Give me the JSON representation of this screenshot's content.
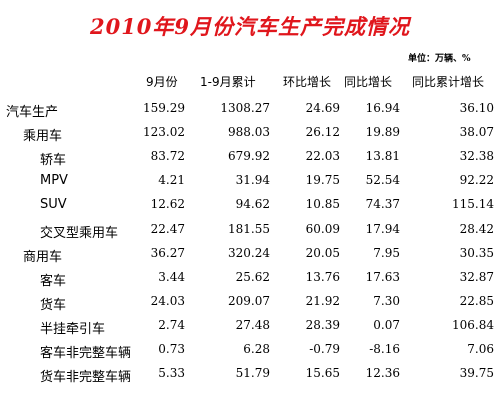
{
  "title": "2010年9月份汽车生产完成情况",
  "unit": "单位：万辆、%",
  "columns": [
    "9月份",
    "1-9月累计",
    "环比增长",
    "同比增长",
    "同比累计增长"
  ],
  "rows": [
    {
      "label": "汽车生产",
      "level": 0,
      "values": [
        "159.29",
        "1308.27",
        "24.69",
        "16.94",
        "36.10"
      ]
    },
    {
      "label": "乘用车",
      "level": 1,
      "values": [
        "123.02",
        "988.03",
        "26.12",
        "19.89",
        "38.07"
      ]
    },
    {
      "label": "轿车",
      "level": 2,
      "values": [
        "83.72",
        "679.92",
        "22.03",
        "13.81",
        "32.38"
      ]
    },
    {
      "label": "MPV",
      "level": 2,
      "values": [
        "4.21",
        "31.94",
        "19.75",
        "52.54",
        "92.22"
      ]
    },
    {
      "label": "SUV",
      "level": 2,
      "values": [
        "12.62",
        "94.62",
        "10.85",
        "74.37",
        "115.14"
      ]
    },
    {
      "label": "交叉型乘用车",
      "level": 2,
      "values": [
        "22.47",
        "181.55",
        "60.09",
        "17.94",
        "28.42"
      ]
    },
    {
      "label": "商用车",
      "level": 1,
      "values": [
        "36.27",
        "320.24",
        "20.05",
        "7.95",
        "30.35"
      ]
    },
    {
      "label": "客车",
      "level": 2,
      "values": [
        "3.44",
        "25.62",
        "13.76",
        "17.63",
        "32.87"
      ]
    },
    {
      "label": "货车",
      "level": 2,
      "values": [
        "24.03",
        "209.07",
        "21.92",
        "7.30",
        "22.85"
      ]
    },
    {
      "label": "半挂牵引车",
      "level": 2,
      "values": [
        "2.74",
        "27.48",
        "28.39",
        "0.07",
        "106.84"
      ]
    },
    {
      "label": "客车非完整车辆",
      "level": 2,
      "values": [
        "0.73",
        "6.28",
        "-0.79",
        "-8.16",
        "7.06"
      ]
    },
    {
      "label": "货车非完整车辆",
      "level": 2,
      "values": [
        "5.33",
        "51.79",
        "15.65",
        "12.36",
        "39.75"
      ]
    }
  ]
}
